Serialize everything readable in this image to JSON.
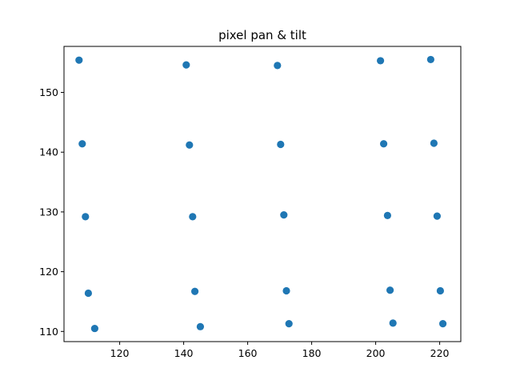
{
  "chart_data": {
    "type": "scatter",
    "title": "pixel pan & tilt",
    "xlabel": "",
    "ylabel": "",
    "xlim": [
      102.6,
      226.6
    ],
    "ylim": [
      108.3,
      157.7
    ],
    "xticks": [
      120,
      140,
      160,
      180,
      200,
      220
    ],
    "yticks": [
      110,
      120,
      130,
      140,
      150
    ],
    "grid": false,
    "marker_color": "#1f77b4",
    "points": [
      {
        "x": 107.3,
        "y": 155.4
      },
      {
        "x": 140.8,
        "y": 154.6
      },
      {
        "x": 169.3,
        "y": 154.5
      },
      {
        "x": 201.5,
        "y": 155.3
      },
      {
        "x": 217.2,
        "y": 155.5
      },
      {
        "x": 108.3,
        "y": 141.4
      },
      {
        "x": 141.8,
        "y": 141.2
      },
      {
        "x": 170.3,
        "y": 141.3
      },
      {
        "x": 202.5,
        "y": 141.4
      },
      {
        "x": 218.2,
        "y": 141.5
      },
      {
        "x": 109.3,
        "y": 129.2
      },
      {
        "x": 142.8,
        "y": 129.2
      },
      {
        "x": 171.3,
        "y": 129.5
      },
      {
        "x": 203.7,
        "y": 129.4
      },
      {
        "x": 219.2,
        "y": 129.3
      },
      {
        "x": 110.2,
        "y": 116.4
      },
      {
        "x": 143.5,
        "y": 116.7
      },
      {
        "x": 172.1,
        "y": 116.8
      },
      {
        "x": 204.5,
        "y": 116.9
      },
      {
        "x": 220.2,
        "y": 116.8
      },
      {
        "x": 112.2,
        "y": 110.5
      },
      {
        "x": 145.2,
        "y": 110.8
      },
      {
        "x": 172.9,
        "y": 111.3
      },
      {
        "x": 205.4,
        "y": 111.4
      },
      {
        "x": 221.0,
        "y": 111.3
      }
    ]
  }
}
